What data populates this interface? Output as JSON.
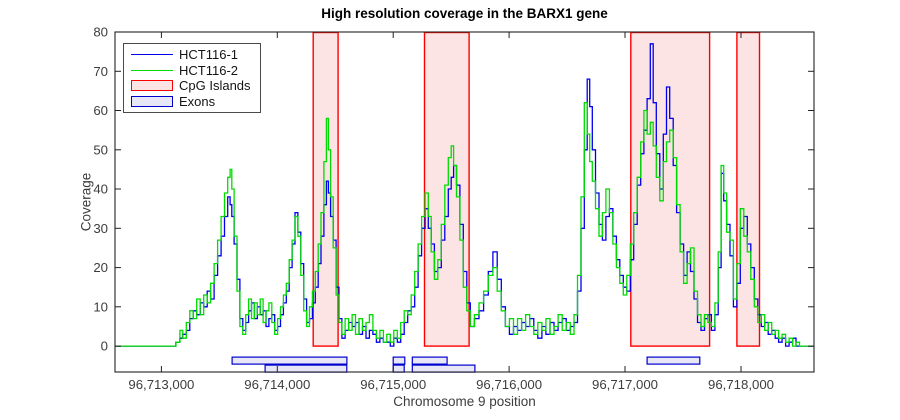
{
  "chart_data": {
    "type": "line",
    "title": "High resolution coverage in the BARX1 gene",
    "xlabel": "Chromosome 9 position",
    "ylabel": "Coverage",
    "xlim": [
      96712600,
      96718630
    ],
    "ylim": [
      -6.6,
      80
    ],
    "grid": false,
    "legend_position": "top-left-inside",
    "yticks": [
      0,
      10,
      20,
      30,
      40,
      50,
      60,
      70,
      80
    ],
    "ytick_labels": [
      "0",
      "10",
      "20",
      "30",
      "40",
      "50",
      "60",
      "70",
      "80"
    ],
    "xticks": [
      96713000,
      96714000,
      96715000,
      96716000,
      96717000,
      96718000
    ],
    "xtick_labels": [
      "96,713,000",
      "96,714,000",
      "96,715,000",
      "96,716,000",
      "96,717,000",
      "96,718,000"
    ],
    "legend": [
      {
        "label": "HCT116-1",
        "type": "line",
        "color": "#0000EE"
      },
      {
        "label": "HCT116-2",
        "type": "line",
        "color": "#00DC00"
      },
      {
        "label": "CpG Islands",
        "type": "patch",
        "fill": "#FCE4E4",
        "stroke": "#FF0000"
      },
      {
        "label": "Exons",
        "type": "patch",
        "fill": "#E7E7F8",
        "stroke": "#0000CC"
      }
    ],
    "cpg_style": {
      "fill": "#FCE4E4",
      "stroke": "#FF0000"
    },
    "exon_style": {
      "fill": "#E7E7F8",
      "stroke": "#0000CC"
    },
    "cpg_islands": [
      [
        96714310,
        96714525
      ],
      [
        96715270,
        96715655
      ],
      [
        96717050,
        96717730
      ],
      [
        96717965,
        96718160
      ]
    ],
    "exons_row1": [
      [
        96713610,
        96714600
      ],
      [
        96715000,
        96715100
      ],
      [
        96715165,
        96715465
      ],
      [
        96717190,
        96717645
      ]
    ],
    "exons_row2": [
      [
        96713895,
        96714600
      ],
      [
        96715000,
        96715095
      ],
      [
        96715165,
        96715705
      ]
    ],
    "x_base": 96713000,
    "x_offsets": [
      -400,
      100,
      150,
      170,
      200,
      230,
      260,
      290,
      320,
      350,
      380,
      410,
      440,
      470,
      500,
      530,
      560,
      585,
      600,
      615,
      640,
      665,
      690,
      715,
      740,
      765,
      790,
      815,
      840,
      865,
      890,
      915,
      940,
      965,
      990,
      1015,
      1040,
      1065,
      1090,
      1115,
      1140,
      1165,
      1190,
      1215,
      1240,
      1265,
      1290,
      1315,
      1340,
      1365,
      1390,
      1415,
      1432,
      1450,
      1470,
      1495,
      1520,
      1545,
      1570,
      1600,
      1630,
      1660,
      1690,
      1720,
      1750,
      1780,
      1810,
      1840,
      1870,
      1900,
      1930,
      1960,
      1990,
      2020,
      2050,
      2080,
      2110,
      2140,
      2170,
      2200,
      2230,
      2260,
      2290,
      2315,
      2340,
      2370,
      2400,
      2430,
      2460,
      2490,
      2510,
      2532,
      2560,
      2590,
      2620,
      2650,
      2680,
      2720,
      2760,
      2800,
      2840,
      2880,
      2915,
      2950,
      2985,
      3020,
      3055,
      3090,
      3125,
      3160,
      3195,
      3230,
      3265,
      3300,
      3335,
      3370,
      3405,
      3440,
      3475,
      3510,
      3545,
      3575,
      3605,
      3635,
      3662,
      3685,
      3705,
      3730,
      3760,
      3790,
      3820,
      3850,
      3880,
      3910,
      3940,
      3970,
      4000,
      4030,
      4060,
      4090,
      4120,
      4150,
      4175,
      4205,
      4230,
      4255,
      4285,
      4315,
      4345,
      4370,
      4400,
      4430,
      4460,
      4490,
      4520,
      4550,
      4580,
      4610,
      4640,
      4670,
      4700,
      4730,
      4760,
      4790,
      4818,
      4840,
      4862,
      4890,
      4920,
      4950,
      4980,
      5008,
      5040,
      5070,
      5100,
      5130,
      5160,
      5190,
      5220,
      5250,
      5280,
      5310,
      5340,
      5370,
      5400,
      5430,
      5460,
      5490,
      5520,
      5630
    ],
    "series": [
      {
        "name": "HCT116-1",
        "color": "#0000EE",
        "y": [
          0,
          0,
          1,
          2,
          3,
          4,
          7,
          9,
          8,
          11,
          10,
          14,
          12,
          18,
          23,
          28,
          33,
          38,
          36,
          33,
          26,
          17,
          7,
          4,
          6,
          9,
          11,
          7,
          10,
          8,
          9,
          5,
          7,
          8,
          4,
          5,
          8,
          11,
          14,
          20,
          26,
          34,
          29,
          21,
          12,
          6,
          7,
          11,
          15,
          21,
          28,
          36,
          42,
          39,
          33,
          27,
          15,
          7,
          2,
          4,
          6,
          5,
          6,
          3,
          5,
          2,
          4,
          3,
          1,
          2,
          1,
          1,
          0,
          2,
          1,
          3,
          6,
          9,
          10,
          15,
          23,
          30,
          35,
          30,
          26,
          19,
          20,
          27,
          33,
          40,
          43,
          46,
          41,
          31,
          19,
          11,
          5,
          7,
          9,
          13,
          19,
          24,
          17,
          10,
          5,
          3,
          5,
          4,
          6,
          5,
          7,
          4,
          2,
          5,
          3,
          6,
          4,
          6,
          7,
          4,
          5,
          6,
          14,
          30,
          50,
          68,
          61,
          50,
          39,
          31,
          27,
          33,
          35,
          28,
          22,
          18,
          15,
          14,
          22,
          31,
          41,
          49,
          55,
          63,
          77,
          62,
          49,
          40,
          54,
          66,
          58,
          46,
          34,
          26,
          18,
          24,
          19,
          12,
          6,
          4,
          7,
          8,
          4,
          8,
          20,
          44,
          37,
          31,
          23,
          10,
          16,
          30,
          33,
          26,
          20,
          12,
          8,
          5,
          6,
          3,
          4,
          2,
          1,
          2,
          0,
          1,
          2,
          0,
          0,
          0
        ]
      },
      {
        "name": "HCT116-2",
        "color": "#00DC00",
        "y": [
          0,
          0,
          1,
          4,
          2,
          6,
          9,
          7,
          12,
          8,
          13,
          11,
          16,
          21,
          27,
          33,
          39,
          43,
          45,
          40,
          28,
          14,
          5,
          3,
          8,
          12,
          7,
          11,
          8,
          12,
          6,
          9,
          11,
          6,
          3,
          7,
          10,
          13,
          16,
          22,
          27,
          33,
          28,
          18,
          9,
          5,
          10,
          14,
          19,
          26,
          34,
          47,
          58,
          50,
          38,
          25,
          13,
          6,
          3,
          7,
          4,
          8,
          3,
          7,
          4,
          6,
          8,
          4,
          2,
          4,
          1,
          3,
          1,
          4,
          2,
          6,
          9,
          8,
          13,
          19,
          26,
          33,
          39,
          33,
          24,
          17,
          22,
          31,
          41,
          48,
          51,
          46,
          38,
          27,
          15,
          9,
          5,
          8,
          11,
          14,
          18,
          20,
          14,
          9,
          5,
          7,
          3,
          7,
          4,
          8,
          5,
          3,
          6,
          4,
          7,
          3,
          5,
          8,
          4,
          6,
          3,
          8,
          18,
          38,
          62,
          54,
          47,
          42,
          35,
          28,
          34,
          40,
          34,
          26,
          20,
          16,
          13,
          18,
          26,
          34,
          43,
          52,
          60,
          54,
          57,
          51,
          43,
          37,
          47,
          52,
          55,
          48,
          36,
          24,
          16,
          21,
          25,
          14,
          8,
          5,
          8,
          6,
          5,
          11,
          24,
          46,
          39,
          29,
          27,
          12,
          21,
          35,
          28,
          24,
          17,
          10,
          6,
          8,
          4,
          6,
          3,
          4,
          2,
          3,
          1,
          2,
          0,
          1,
          0,
          0
        ]
      }
    ]
  }
}
